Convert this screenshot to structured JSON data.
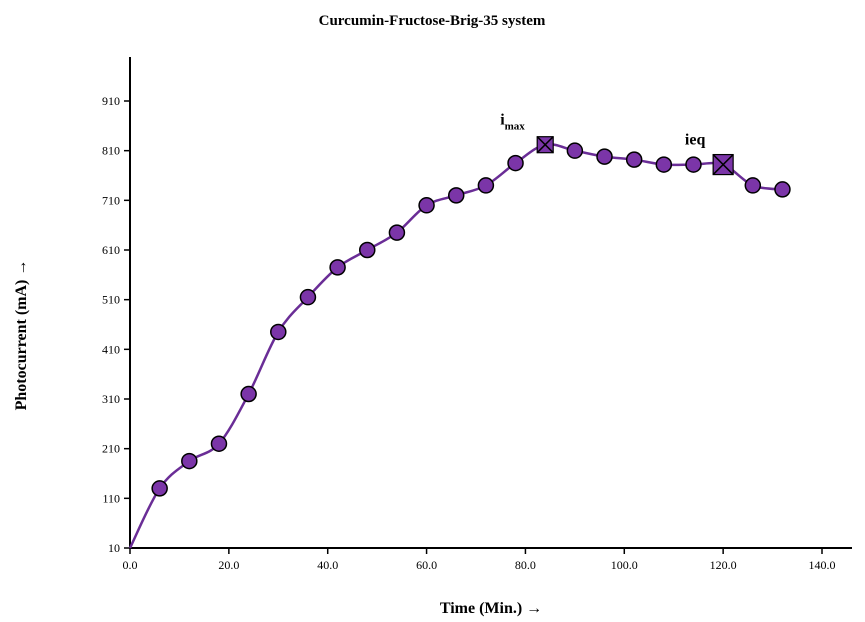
{
  "chart_data": {
    "type": "line",
    "title": "Curcumin-Fructose-Brig-35 system",
    "xlabel": "Time (Min.) →",
    "ylabel": "Photocurrent (mA) →",
    "xlim": [
      0,
      145
    ],
    "ylim": [
      10,
      1010
    ],
    "x_ticks": [
      "0.0",
      "20.0",
      "40.0",
      "60.0",
      "80.0",
      "100.0",
      "120.0",
      "140.0"
    ],
    "y_ticks": [
      "10",
      "110",
      "210",
      "310",
      "410",
      "510",
      "610",
      "710",
      "810",
      "910"
    ],
    "grid": false,
    "legend": "none",
    "line_color": "#6a2d96",
    "marker_fill": "#7b35a8",
    "series": [
      {
        "x": [
          0,
          6,
          12,
          18,
          24,
          30,
          36,
          42,
          48,
          54,
          60,
          66,
          72,
          78,
          84,
          90,
          96,
          102,
          108,
          114,
          120,
          126,
          132
        ],
        "values": [
          10,
          130,
          185,
          220,
          320,
          445,
          515,
          575,
          610,
          645,
          700,
          720,
          740,
          785,
          822,
          810,
          798,
          792,
          782,
          782,
          782,
          740,
          732
        ]
      }
    ],
    "annotations": [
      {
        "label": "i",
        "sub": "max",
        "x": 84,
        "y": 822
      },
      {
        "label": "ieq",
        "sub": "",
        "x": 120,
        "y": 782
      }
    ]
  }
}
